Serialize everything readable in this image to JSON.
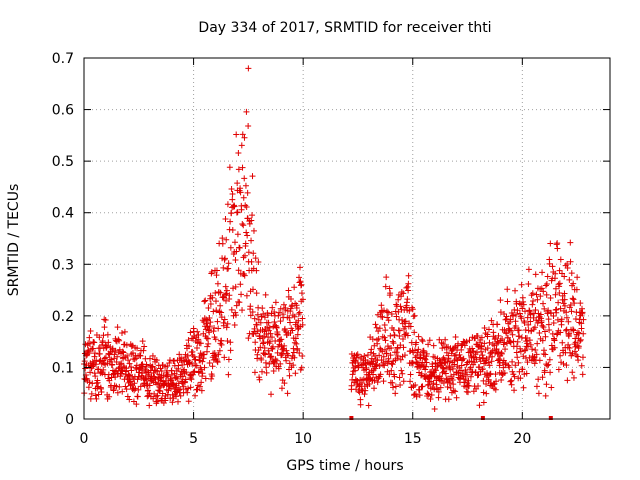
{
  "chart_data": {
    "type": "scatter",
    "title": "Day 334 of 2017, SRMTID for receiver thti",
    "xlabel": "GPS time / hours",
    "ylabel": "SRMTID / TECUs",
    "xlim": [
      0,
      24
    ],
    "ylim": [
      0,
      0.7
    ],
    "xticks": [
      0,
      5,
      10,
      15,
      20
    ],
    "yticks": [
      0,
      0.1,
      0.2,
      0.3,
      0.4,
      0.5,
      0.6,
      0.7
    ],
    "grid": true,
    "marker": "+",
    "color": "#e00000",
    "series": [
      {
        "name": "SRMTID",
        "segments": [
          {
            "x_start": 0.0,
            "x_end": 10.0,
            "profile": [
              [
                0.0,
                0.1
              ],
              [
                0.5,
                0.11
              ],
              [
                1.0,
                0.12
              ],
              [
                1.5,
                0.11
              ],
              [
                2.0,
                0.1
              ],
              [
                2.5,
                0.09
              ],
              [
                3.0,
                0.08
              ],
              [
                3.5,
                0.07
              ],
              [
                4.0,
                0.07
              ],
              [
                4.5,
                0.09
              ],
              [
                5.0,
                0.11
              ],
              [
                5.5,
                0.14
              ],
              [
                6.0,
                0.18
              ],
              [
                6.5,
                0.25
              ],
              [
                7.0,
                0.36
              ],
              [
                7.3,
                0.42
              ],
              [
                7.6,
                0.3
              ],
              [
                8.0,
                0.17
              ],
              [
                8.5,
                0.14
              ],
              [
                9.0,
                0.15
              ],
              [
                9.5,
                0.16
              ],
              [
                10.0,
                0.2
              ]
            ]
          },
          {
            "x_start": 12.2,
            "x_end": 22.8,
            "profile": [
              [
                12.2,
                0.08
              ],
              [
                12.8,
                0.09
              ],
              [
                13.3,
                0.12
              ],
              [
                13.7,
                0.18
              ],
              [
                14.2,
                0.13
              ],
              [
                14.7,
                0.2
              ],
              [
                15.2,
                0.1
              ],
              [
                16.0,
                0.09
              ],
              [
                16.8,
                0.1
              ],
              [
                17.5,
                0.09
              ],
              [
                18.2,
                0.11
              ],
              [
                19.0,
                0.13
              ],
              [
                19.5,
                0.15
              ],
              [
                20.0,
                0.17
              ],
              [
                20.5,
                0.19
              ],
              [
                21.0,
                0.18
              ],
              [
                21.5,
                0.21
              ],
              [
                22.0,
                0.2
              ],
              [
                22.5,
                0.18
              ],
              [
                22.8,
                0.16
              ]
            ]
          }
        ],
        "zero_points": [
          12.2,
          18.2,
          21.3
        ],
        "peak": {
          "x": 7.5,
          "y": 0.68
        },
        "max_x": 22.8
      }
    ]
  }
}
